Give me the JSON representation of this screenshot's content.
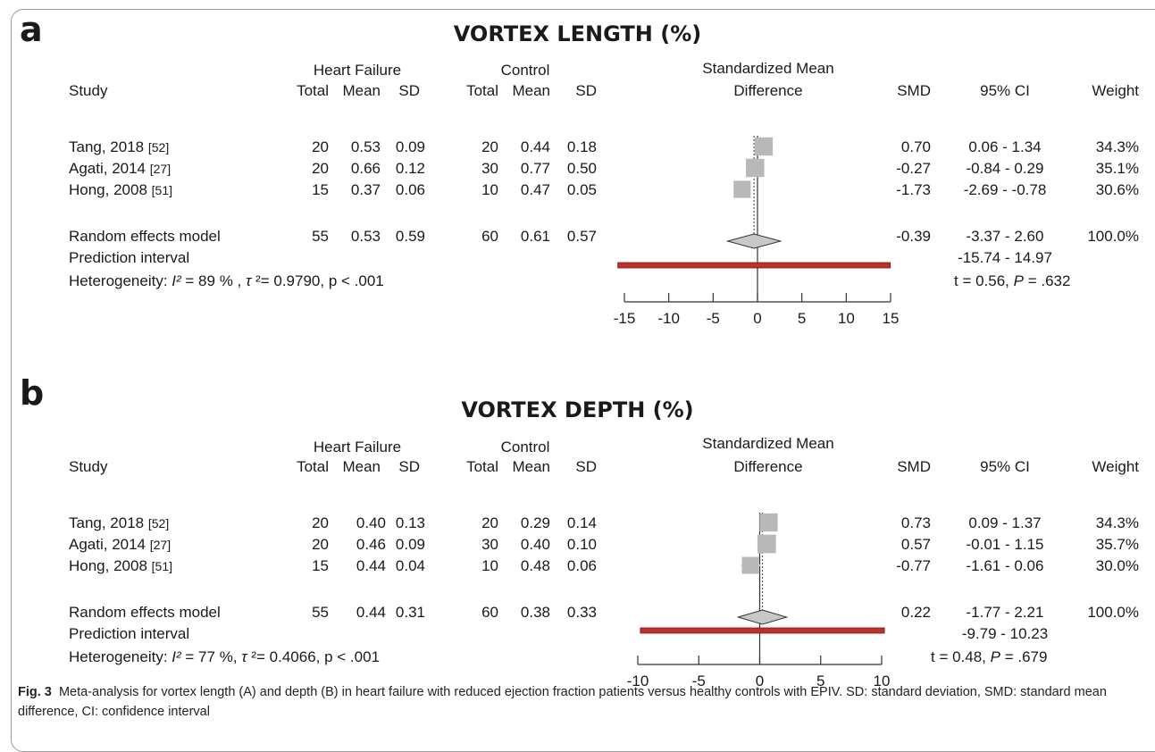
{
  "caption": {
    "label": "Fig. 3",
    "text": "Meta-analysis for vortex length (A) and depth (B) in heart failure with reduced ejection fraction patients versus healthy controls with EPIV. SD: standard deviation, SMD: standard mean difference, CI: confidence interval"
  },
  "colors": {
    "ci_box": "#b8b8b8",
    "diamond": "#c8c8c8",
    "prediction_bar": "#c0302b"
  },
  "chart_data": [
    {
      "type": "forest",
      "panel_label": "a",
      "title": "VORTEX LENGTH (%)",
      "headers": {
        "study": "Study",
        "group1": "Heart Failure",
        "group2": "Control",
        "total": "Total",
        "mean": "Mean",
        "sd": "SD",
        "effect_line1": "Standardized Mean",
        "effect_line2": "Difference",
        "smd": "SMD",
        "ci": "95% CI",
        "weight": "Weight"
      },
      "studies": [
        {
          "name": "Tang, 2018",
          "ref": "[52]",
          "hf_total": "20",
          "hf_mean": "0.53",
          "hf_sd": "0.09",
          "ctrl_total": "20",
          "ctrl_mean": "0.44",
          "ctrl_sd": "0.18",
          "smd": "0.70",
          "ci": "0.06 - 1.34",
          "weight": "34.3%",
          "smd_value": 0.7,
          "ci_low": 0.06,
          "ci_high": 1.34,
          "weight_value": 34.3
        },
        {
          "name": "Agati, 2014",
          "ref": "[27]",
          "hf_total": "20",
          "hf_mean": "0.66",
          "hf_sd": "0.12",
          "ctrl_total": "30",
          "ctrl_mean": "0.77",
          "ctrl_sd": "0.50",
          "smd": "-0.27",
          "ci": "-0.84 - 0.29",
          "weight": "35.1%",
          "smd_value": -0.27,
          "ci_low": -0.84,
          "ci_high": 0.29,
          "weight_value": 35.1
        },
        {
          "name": "Hong, 2008",
          "ref": "[51]",
          "hf_total": "15",
          "hf_mean": "0.37",
          "hf_sd": "0.06",
          "ctrl_total": "10",
          "ctrl_mean": "0.47",
          "ctrl_sd": "0.05",
          "smd": "-1.73",
          "ci": "-2.69 - -0.78",
          "weight": "30.6%",
          "smd_value": -1.73,
          "ci_low": -2.69,
          "ci_high": -0.78,
          "weight_value": 30.6
        }
      ],
      "pooled": {
        "name": "Random effects model",
        "hf_total": "55",
        "hf_mean": "0.53",
        "hf_sd": "0.59",
        "ctrl_total": "60",
        "ctrl_mean": "0.61",
        "ctrl_sd": "0.57",
        "smd": "-0.39",
        "ci": "-3.37 - 2.60",
        "weight": "100.0%",
        "smd_value": -0.39,
        "ci_low": -3.37,
        "ci_high": 2.6
      },
      "prediction": {
        "name": "Prediction interval",
        "ci": "-15.74 - 14.97",
        "low": -15.74,
        "high": 14.97
      },
      "heterogeneity": {
        "prefix": "Heterogeneity: ",
        "i2_sym": "I²",
        "i2": " = 89 % , ",
        "tau_sym": "τ",
        "tau": " ²= 0.9790, p < .001"
      },
      "test": {
        "t": "t = 0.56, ",
        "p_sym": "P",
        "p": " = .632"
      },
      "xlim": [
        -15,
        15
      ],
      "ticks": [
        -15,
        -10,
        -5,
        0,
        5,
        10,
        15
      ]
    },
    {
      "type": "forest",
      "panel_label": "b",
      "title": "VORTEX DEPTH (%)",
      "headers": {
        "study": "Study",
        "group1": "Heart Failure",
        "group2": "Control",
        "total": "Total",
        "mean": "Mean",
        "sd": "SD",
        "effect_line1": "Standardized Mean",
        "effect_line2": "Difference",
        "smd": "SMD",
        "ci": "95% CI",
        "weight": "Weight"
      },
      "studies": [
        {
          "name": "Tang, 2018",
          "ref": "[52]",
          "hf_total": "20",
          "hf_mean": "0.40",
          "hf_sd": "0.13",
          "ctrl_total": "20",
          "ctrl_mean": "0.29",
          "ctrl_sd": "0.14",
          "smd": "0.73",
          "ci": "0.09 - 1.37",
          "weight": "34.3%",
          "smd_value": 0.73,
          "ci_low": 0.09,
          "ci_high": 1.37,
          "weight_value": 34.3
        },
        {
          "name": "Agati, 2014",
          "ref": "[27]",
          "hf_total": "20",
          "hf_mean": "0.46",
          "hf_sd": "0.09",
          "ctrl_total": "30",
          "ctrl_mean": "0.40",
          "ctrl_sd": "0.10",
          "smd": "0.57",
          "ci": "-0.01 - 1.15",
          "weight": "35.7%",
          "smd_value": 0.57,
          "ci_low": -0.01,
          "ci_high": 1.15,
          "weight_value": 35.7
        },
        {
          "name": "Hong, 2008",
          "ref": "[51]",
          "hf_total": "15",
          "hf_mean": "0.44",
          "hf_sd": "0.04",
          "ctrl_total": "10",
          "ctrl_mean": "0.48",
          "ctrl_sd": "0.06",
          "smd": "-0.77",
          "ci": "-1.61 - 0.06",
          "weight": "30.0%",
          "smd_value": -0.77,
          "ci_low": -1.61,
          "ci_high": 0.06,
          "weight_value": 30.0
        }
      ],
      "pooled": {
        "name": "Random effects model",
        "hf_total": "55",
        "hf_mean": "0.44",
        "hf_sd": "0.31",
        "ctrl_total": "60",
        "ctrl_mean": "0.38",
        "ctrl_sd": "0.33",
        "smd": "0.22",
        "ci": "-1.77 - 2.21",
        "weight": "100.0%",
        "smd_value": 0.22,
        "ci_low": -1.77,
        "ci_high": 2.21
      },
      "prediction": {
        "name": "Prediction interval",
        "ci": "-9.79 - 10.23",
        "low": -9.79,
        "high": 10.23
      },
      "heterogeneity": {
        "prefix": "Heterogeneity: ",
        "i2_sym": "I²",
        "i2": " = 77 %, ",
        "tau_sym": "τ",
        "tau": " ²= 0.4066, p < .001"
      },
      "test": {
        "t": "t = 0.48, ",
        "p_sym": "P",
        "p": " = .679"
      },
      "xlim": [
        -10,
        10
      ],
      "ticks": [
        -10,
        -5,
        0,
        5,
        10
      ]
    }
  ]
}
